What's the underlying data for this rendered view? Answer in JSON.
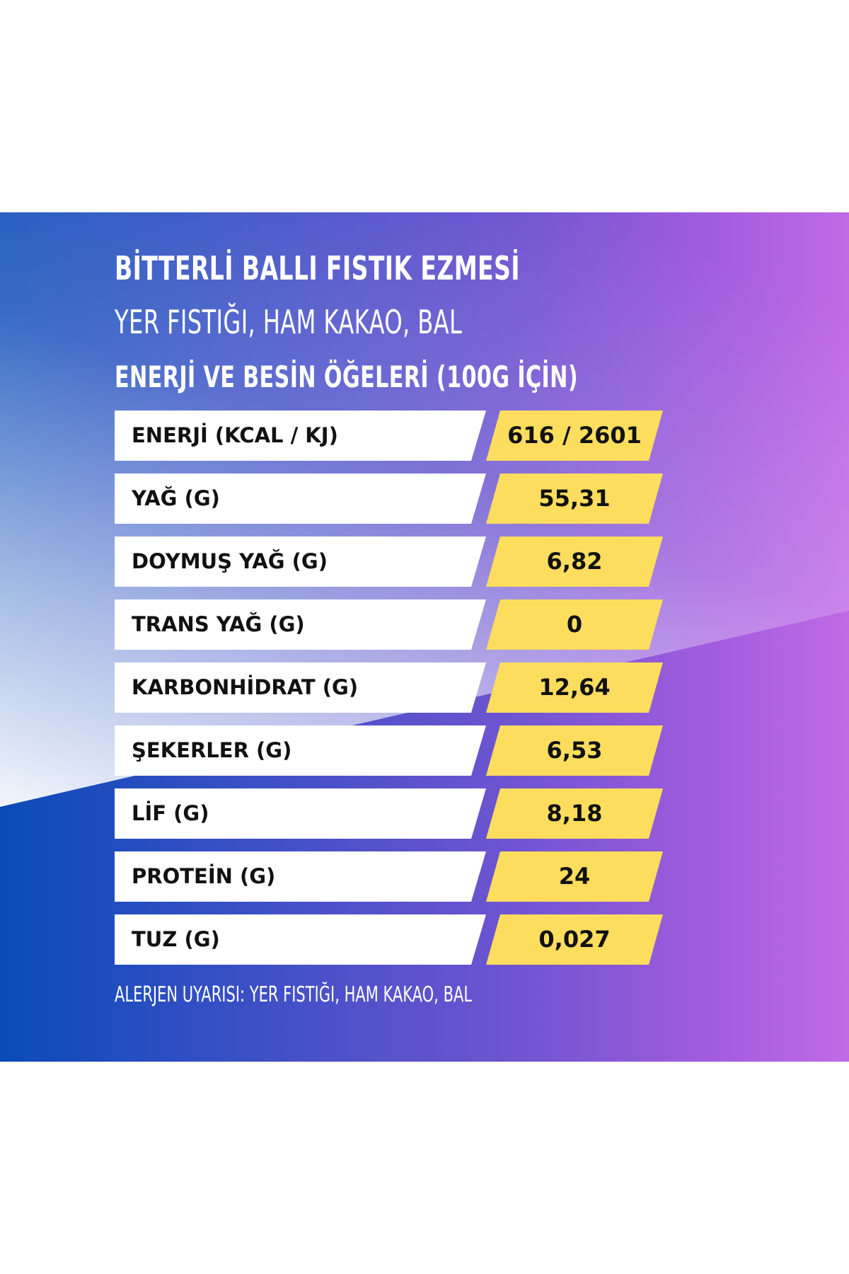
{
  "header": {
    "title": "BİTTERLİ BALLI FISTIK EZMESİ",
    "subtitle": "YER FISTIĞI, HAM KAKAO, BAL",
    "section_title": "ENERJİ VE BESİN ÖĞELERİ (100G İÇİN)"
  },
  "nutrition": {
    "rows": [
      {
        "label": "ENERJİ (KCAL / KJ)",
        "value": "616 / 2601"
      },
      {
        "label": "YAĞ (G)",
        "value": "55,31"
      },
      {
        "label": "DOYMUŞ YAĞ (G)",
        "value": "6,82"
      },
      {
        "label": "TRANS YAĞ (G)",
        "value": "0"
      },
      {
        "label": "KARBONHİDRAT (G)",
        "value": "12,64"
      },
      {
        "label": "ŞEKERLER (G)",
        "value": "6,53"
      },
      {
        "label": "LİF (G)",
        "value": "8,18"
      },
      {
        "label": "PROTEİN (G)",
        "value": "24"
      },
      {
        "label": "TUZ (G)",
        "value": "0,027"
      }
    ]
  },
  "footer": {
    "allergen_warning": "ALERJEN UYARISI: YER FISTIĞI, HAM KAKAO, BAL"
  },
  "colors": {
    "gradient_start": "#0a4bb8",
    "gradient_end": "#c06ae6",
    "value_cell": "#fcdd5e",
    "label_cell": "#ffffff"
  }
}
